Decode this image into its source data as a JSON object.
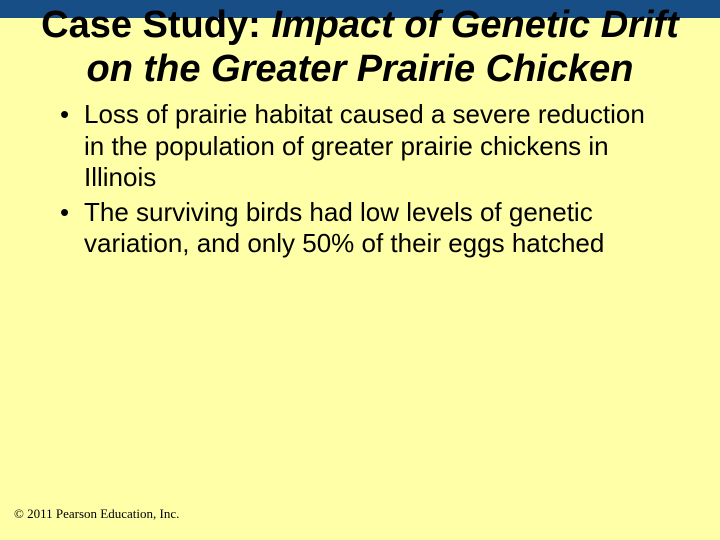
{
  "colors": {
    "background": "#ffffa8",
    "top_bar": "#174e86",
    "text": "#000000"
  },
  "typography": {
    "title_fontsize": 38,
    "title_font": "Arial",
    "body_fontsize": 26,
    "body_font": "Arial",
    "copyright_fontsize": 13,
    "copyright_font": "Times New Roman"
  },
  "title": {
    "prefix": "Case Study: ",
    "italic": "Impact of Genetic Drift on the Greater Prairie Chicken"
  },
  "bullets": [
    "Loss of prairie habitat caused a severe reduction in the population of greater prairie chickens in Illinois",
    "The surviving birds had low levels of genetic variation, and only 50% of their eggs hatched"
  ],
  "copyright": "© 2011 Pearson Education, Inc."
}
